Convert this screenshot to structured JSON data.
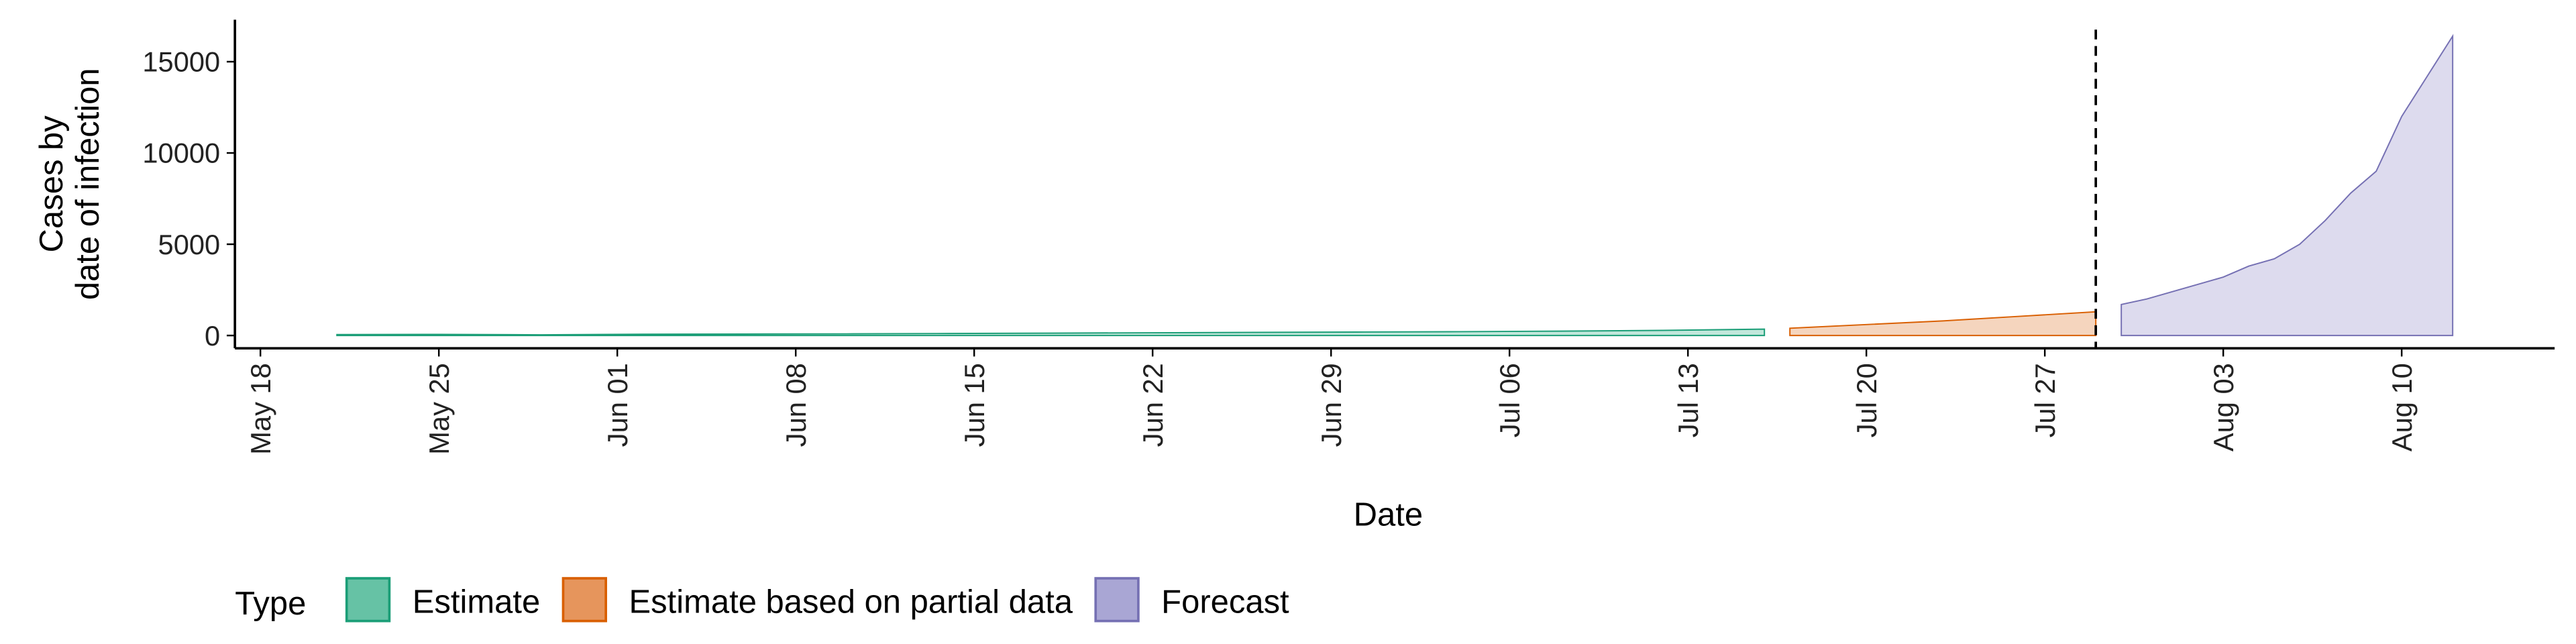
{
  "chart_data": {
    "type": "area",
    "xlabel": "Date",
    "ylabel": [
      "Cases by",
      "date of infection"
    ],
    "xlim": [
      "May 17",
      "Aug 16"
    ],
    "ylim": [
      -700,
      17300
    ],
    "xticks": [
      "May 18",
      "May 25",
      "Jun 01",
      "Jun 08",
      "Jun 15",
      "Jun 22",
      "Jun 29",
      "Jul 06",
      "Jul 13",
      "Jul 20",
      "Jul 27",
      "Aug 03",
      "Aug 10"
    ],
    "yticks": [
      0,
      5000,
      10000,
      15000
    ],
    "vline": "Jul 29",
    "legend_title": "Type",
    "legend": "bottom",
    "series": [
      {
        "name": "Estimate",
        "color": "#1b9e77",
        "fill": "#66c2a5",
        "x": [
          "May 21",
          "May 25",
          "May 29",
          "Jun 02",
          "Jun 06",
          "Jun 10",
          "Jun 14",
          "Jun 18",
          "Jun 22",
          "Jun 26",
          "Jun 30",
          "Jul 04",
          "Jul 08",
          "Jul 12",
          "Jul 16"
        ],
        "values": [
          50,
          60,
          40,
          70,
          80,
          90,
          110,
          130,
          150,
          170,
          190,
          210,
          240,
          280,
          350
        ]
      },
      {
        "name": "Estimate based on partial data",
        "color": "#d95f02",
        "fill": "#e6955c",
        "x": [
          "Jul 17",
          "Jul 20",
          "Jul 23",
          "Jul 26",
          "Jul 29"
        ],
        "values": [
          400,
          600,
          800,
          1050,
          1300
        ]
      },
      {
        "name": "Forecast",
        "color": "#7570b3",
        "fill": "#a9a6d4",
        "x": [
          "Jul 30",
          "Jul 31",
          "Aug 01",
          "Aug 02",
          "Aug 03",
          "Aug 04",
          "Aug 05",
          "Aug 06",
          "Aug 07",
          "Aug 08",
          "Aug 09",
          "Aug 10",
          "Aug 11",
          "Aug 12"
        ],
        "values": [
          1700,
          2000,
          2400,
          2800,
          3200,
          3800,
          4200,
          5000,
          6300,
          7800,
          9000,
          12000,
          14200,
          16400
        ]
      }
    ]
  }
}
